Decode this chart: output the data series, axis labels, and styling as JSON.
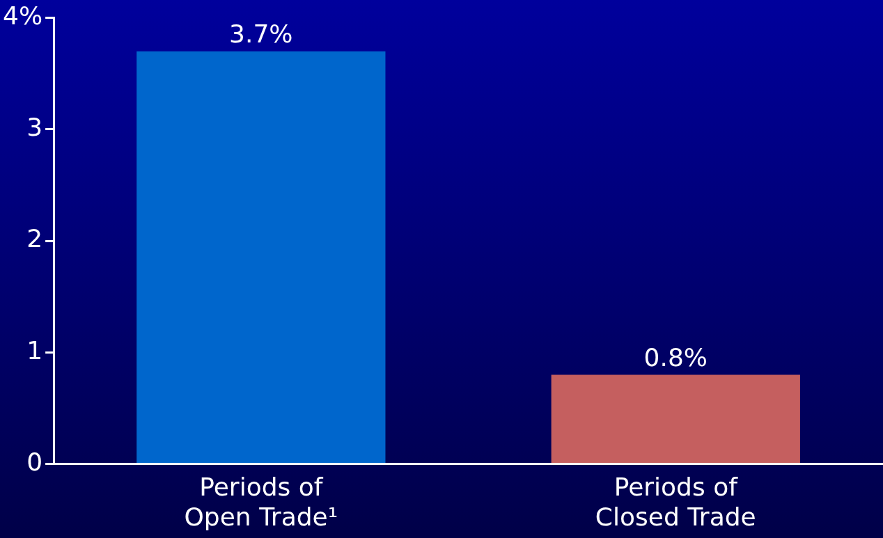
{
  "chart_data": {
    "type": "bar",
    "categories": [
      "Periods of\nOpen Trade¹",
      "Periods of\nClosed Trade"
    ],
    "values": [
      3.7,
      0.8
    ],
    "colors": [
      "#0066cc",
      "#c55f5f"
    ],
    "value_labels": [
      "3.7%",
      "0.8%"
    ],
    "ylim": [
      0,
      4
    ],
    "yticks": [
      0,
      1,
      2,
      3,
      {
        "value": 4,
        "label": "4%"
      }
    ],
    "grid": false,
    "legend": false
  }
}
